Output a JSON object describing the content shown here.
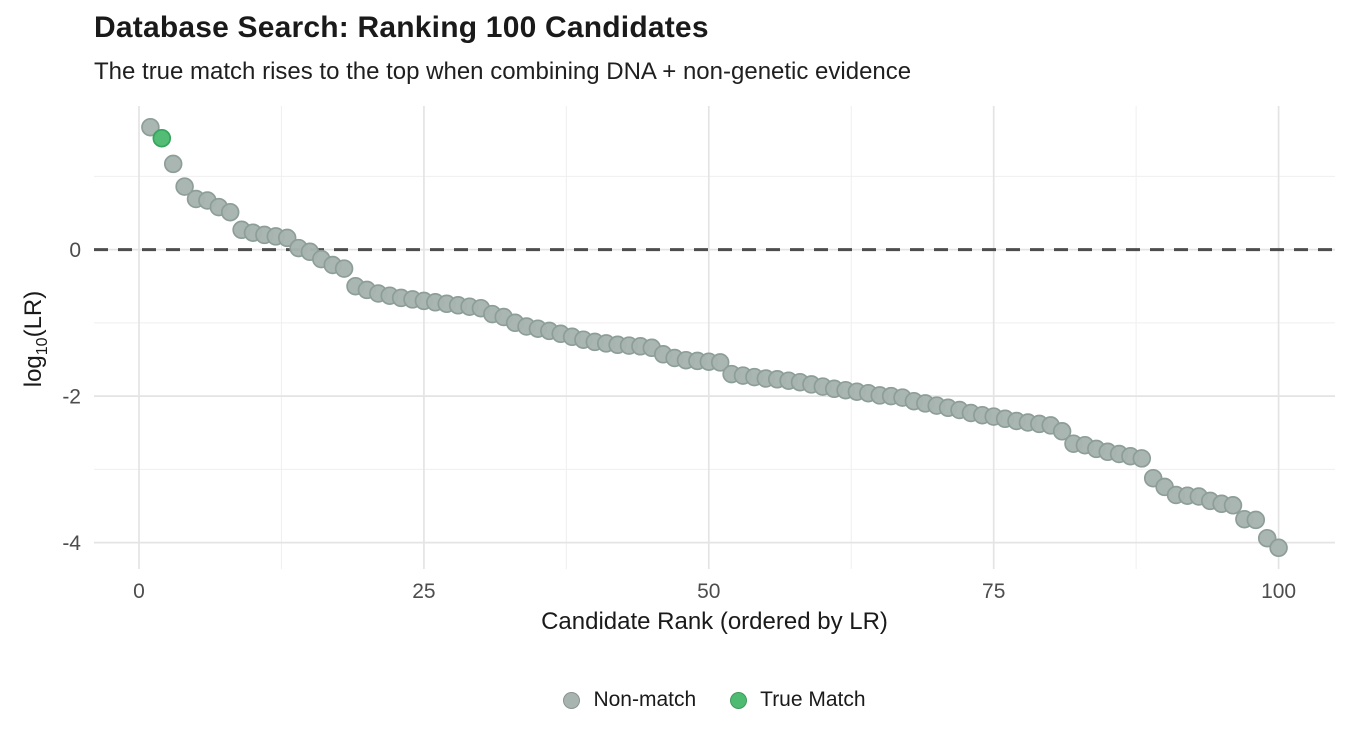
{
  "header": {
    "title": "Database Search: Ranking 100 Candidates",
    "subtitle": "The true match rises to the top when combining DNA + non-genetic evidence"
  },
  "chart_data": {
    "type": "scatter",
    "title": "Database Search: Ranking 100 Candidates",
    "subtitle": "The true match rises to the top when combining DNA + non-genetic evidence",
    "xlabel": "Candidate Rank (ordered by LR)",
    "ylabel": "log10(LR)",
    "ylabel_parts": {
      "prefix": "log",
      "sub": "10",
      "suffix": "(LR)"
    },
    "x_ticks": [
      0,
      25,
      50,
      75,
      100
    ],
    "y_ticks": [
      0,
      -2,
      -4
    ],
    "x_minor_ticks": [
      12.5,
      37.5,
      62.5,
      87.5
    ],
    "y_minor_ticks": [
      1,
      -1,
      -3
    ],
    "xlim": [
      -3.95,
      104.95
    ],
    "ylim": [
      -4.36,
      1.96
    ],
    "grid": "on",
    "reference_line": {
      "y": 0,
      "style": "dashed"
    },
    "legend_position": "bottom",
    "legend": [
      {
        "label": "Non-match",
        "color": "#a7b4b0"
      },
      {
        "label": "True Match",
        "color": "#4dbb72"
      }
    ],
    "colors": {
      "non_match_fill": "#a7b4b0",
      "non_match_stroke": "#8d9e99",
      "true_match_fill": "#4dbb72",
      "true_match_stroke": "#35a45c",
      "reference_line": "#4d4d4d",
      "major_grid": "#e4e4e4",
      "minor_grid": "#efefef",
      "tick_label": "#4d4d4d"
    },
    "true_match_rank": 2,
    "ranks_start": 1,
    "log10_lr_values": [
      1.67,
      1.52,
      1.17,
      0.86,
      0.69,
      0.67,
      0.58,
      0.51,
      0.27,
      0.23,
      0.2,
      0.18,
      0.16,
      0.02,
      -0.03,
      -0.13,
      -0.21,
      -0.26,
      -0.5,
      -0.55,
      -0.6,
      -0.63,
      -0.66,
      -0.68,
      -0.7,
      -0.72,
      -0.74,
      -0.76,
      -0.78,
      -0.8,
      -0.88,
      -0.92,
      -1.0,
      -1.05,
      -1.08,
      -1.11,
      -1.15,
      -1.19,
      -1.23,
      -1.26,
      -1.28,
      -1.3,
      -1.31,
      -1.32,
      -1.34,
      -1.43,
      -1.48,
      -1.51,
      -1.52,
      -1.53,
      -1.54,
      -1.7,
      -1.72,
      -1.74,
      -1.76,
      -1.77,
      -1.79,
      -1.81,
      -1.84,
      -1.87,
      -1.9,
      -1.92,
      -1.94,
      -1.96,
      -1.99,
      -2.0,
      -2.02,
      -2.07,
      -2.1,
      -2.13,
      -2.16,
      -2.19,
      -2.23,
      -2.26,
      -2.28,
      -2.31,
      -2.34,
      -2.36,
      -2.38,
      -2.4,
      -2.48,
      -2.65,
      -2.67,
      -2.72,
      -2.76,
      -2.79,
      -2.82,
      -2.85,
      -3.12,
      -3.24,
      -3.35,
      -3.36,
      -3.37,
      -3.43,
      -3.47,
      -3.49,
      -3.68,
      -3.69,
      -3.94,
      -4.07
    ]
  }
}
